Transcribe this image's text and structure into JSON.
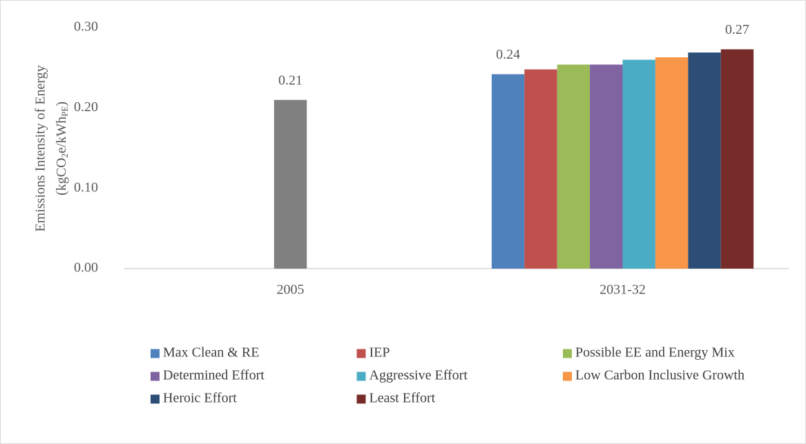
{
  "chart_data": {
    "type": "bar",
    "y_label": [
      "Emissions Intensity of Energy",
      [
        {
          "text": "(kgCO"
        },
        {
          "text": "2",
          "sub": true
        },
        {
          "text": "e/kWh"
        },
        {
          "text": "PE",
          "sub": true
        },
        {
          "text": ")"
        }
      ]
    ],
    "categories": [
      "2005",
      "2031-32"
    ],
    "series": [
      {
        "color": "#808080",
        "values": [
          0.21,
          null
        ],
        "value_labels": [
          "0.21",
          null
        ]
      },
      {
        "name": "Max Clean & RE",
        "color": "#4f81bd",
        "values": [
          null,
          0.242
        ],
        "value_labels": [
          null,
          "0.24"
        ]
      },
      {
        "name": "IEP",
        "color": "#c0504d",
        "values": [
          null,
          0.248
        ]
      },
      {
        "name": "Possible EE and Energy Mix",
        "color": "#9bbb59",
        "values": [
          null,
          0.254
        ]
      },
      {
        "name": "Determined Effort",
        "color": "#8064a2",
        "values": [
          null,
          0.254
        ]
      },
      {
        "name": "Aggressive Effort",
        "color": "#4bacc6",
        "values": [
          null,
          0.26
        ]
      },
      {
        "name": "Low Carbon Inclusive Growth",
        "color": "#f79646",
        "values": [
          null,
          0.263
        ]
      },
      {
        "name": "Heroic Effort",
        "color": "#2c4d75",
        "values": [
          null,
          0.269
        ]
      },
      {
        "name": "Least Effort",
        "color": "#772c2a",
        "values": [
          null,
          0.273
        ],
        "value_labels": [
          null,
          "0.27"
        ]
      }
    ],
    "ylim": [
      0,
      0.3
    ],
    "yticks": [
      {
        "value": 0,
        "label": "0.00"
      },
      {
        "value": 0.1,
        "label": "0.10"
      },
      {
        "value": 0.2,
        "label": "0.20"
      },
      {
        "value": 0.3,
        "label": "0.30"
      }
    ],
    "grid": false,
    "legend": "bottom"
  }
}
